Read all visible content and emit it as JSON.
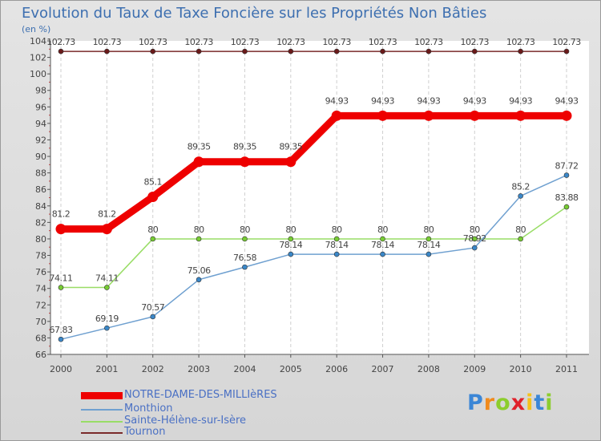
{
  "chart_data": {
    "type": "line",
    "title": "Evolution du Taux de Taxe Foncière sur les Propriétés Non Bâties",
    "ylabel": "(en %)",
    "xlabel": "",
    "categories": [
      "2000",
      "2001",
      "2002",
      "2003",
      "2004",
      "2005",
      "2006",
      "2007",
      "2008",
      "2009",
      "2010",
      "2011"
    ],
    "ylim": [
      66,
      104
    ],
    "yticks": [
      66,
      68,
      70,
      72,
      74,
      76,
      78,
      80,
      82,
      84,
      86,
      88,
      90,
      92,
      94,
      96,
      98,
      100,
      102,
      104
    ],
    "series": [
      {
        "name": "NOTRE-DAME-DES-MILLIèRES",
        "color": "#ee0000",
        "thick": true,
        "values": [
          81.2,
          81.2,
          85.1,
          89.35,
          89.35,
          89.35,
          94.93,
          94.93,
          94.93,
          94.93,
          94.93,
          94.93
        ],
        "labels": [
          "81.2",
          "81.2",
          "85.1",
          "89.35",
          "89.35",
          "89.35",
          "94.93",
          "94.93",
          "94.93",
          "94.93",
          "94.93",
          "94.93"
        ]
      },
      {
        "name": "Monthion",
        "color": "#6fa0d0",
        "marker": "#3a87c8",
        "values": [
          67.83,
          69.19,
          70.57,
          75.06,
          76.58,
          78.14,
          78.14,
          78.14,
          78.14,
          78.92,
          85.2,
          87.72
        ],
        "labels": [
          "67.83",
          "69.19",
          "70.57",
          "75.06",
          "76.58",
          "78.14",
          "78.14",
          "78.14",
          "78.14",
          "78.92",
          "85.2",
          "87.72"
        ]
      },
      {
        "name": "Sainte-Hélène-sur-Isère",
        "color": "#99dd66",
        "marker": "#77cc33",
        "values": [
          74.11,
          74.11,
          80,
          80,
          80,
          80,
          80,
          80,
          80,
          80,
          80,
          83.88
        ],
        "labels": [
          "74.11",
          "74.11",
          "80",
          "80",
          "80",
          "80",
          "80",
          "80",
          "80",
          "80",
          "80",
          "83.88"
        ]
      },
      {
        "name": "Tournon",
        "color": "#7a2a2a",
        "marker": "#6a1a1a",
        "values": [
          102.73,
          102.73,
          102.73,
          102.73,
          102.73,
          102.73,
          102.73,
          102.73,
          102.73,
          102.73,
          102.73,
          102.73
        ],
        "labels": [
          "102.73",
          "102.73",
          "102.73",
          "102.73",
          "102.73",
          "102.73",
          "102.73",
          "102.73",
          "102.73",
          "102.73",
          "102.73",
          "102.73"
        ]
      }
    ]
  },
  "legend": [
    {
      "label": "NOTRE-DAME-DES-MILLIèRES",
      "color": "#ee0000"
    },
    {
      "label": "Monthion",
      "color": "#6fa0d0"
    },
    {
      "label": "Sainte-Hélène-sur-Isère",
      "color": "#99dd66"
    },
    {
      "label": "Tournon",
      "color": "#7a2a2a"
    }
  ],
  "brand": {
    "letters": [
      "P",
      "r",
      "o",
      "x",
      "i",
      "t",
      "i"
    ],
    "colors": [
      "#3b86d6",
      "#f08a1c",
      "#8ccd2d",
      "#e0212b",
      "#f5c21b",
      "#3b86d6",
      "#8ccd2d"
    ]
  }
}
